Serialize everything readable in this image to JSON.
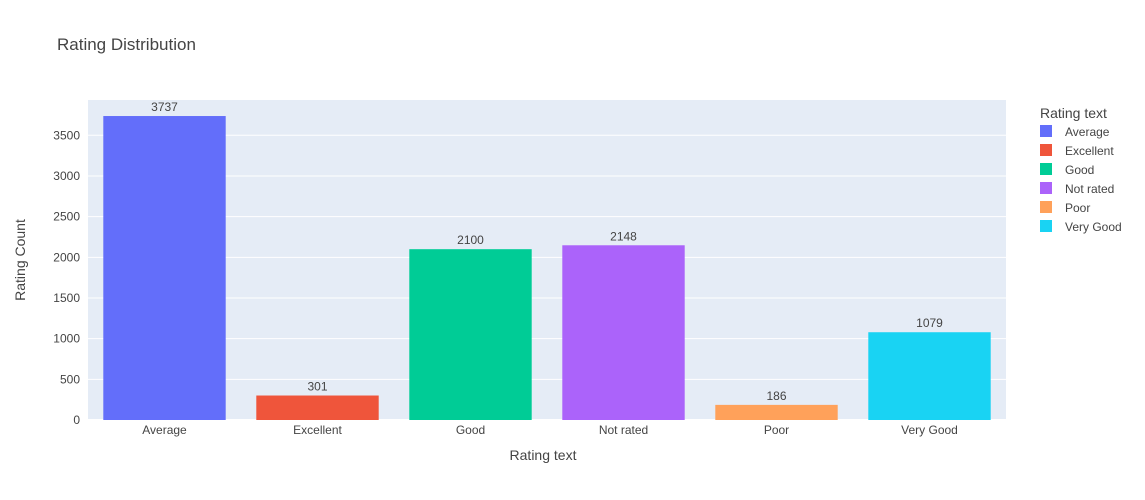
{
  "chart_data": {
    "type": "bar",
    "title": "Rating Distribution",
    "xlabel": "Rating text",
    "ylabel": "Rating Count",
    "categories": [
      "Average",
      "Excellent",
      "Good",
      "Not rated",
      "Poor",
      "Very Good"
    ],
    "values": [
      3737,
      301,
      2100,
      2148,
      186,
      1079
    ],
    "colors": [
      "#636efa",
      "#EF553B",
      "#00cc96",
      "#ab63fa",
      "#FFA15A",
      "#19d3f3"
    ],
    "ylim": [
      0,
      3934
    ],
    "yticks": [
      0,
      500,
      1000,
      1500,
      2000,
      2500,
      3000,
      3500
    ],
    "grid": true,
    "legend": {
      "title": "Rating text",
      "placement": "right",
      "entries": [
        "Average",
        "Excellent",
        "Good",
        "Not rated",
        "Poor",
        "Very Good"
      ]
    },
    "background": "#E5ECF6"
  }
}
